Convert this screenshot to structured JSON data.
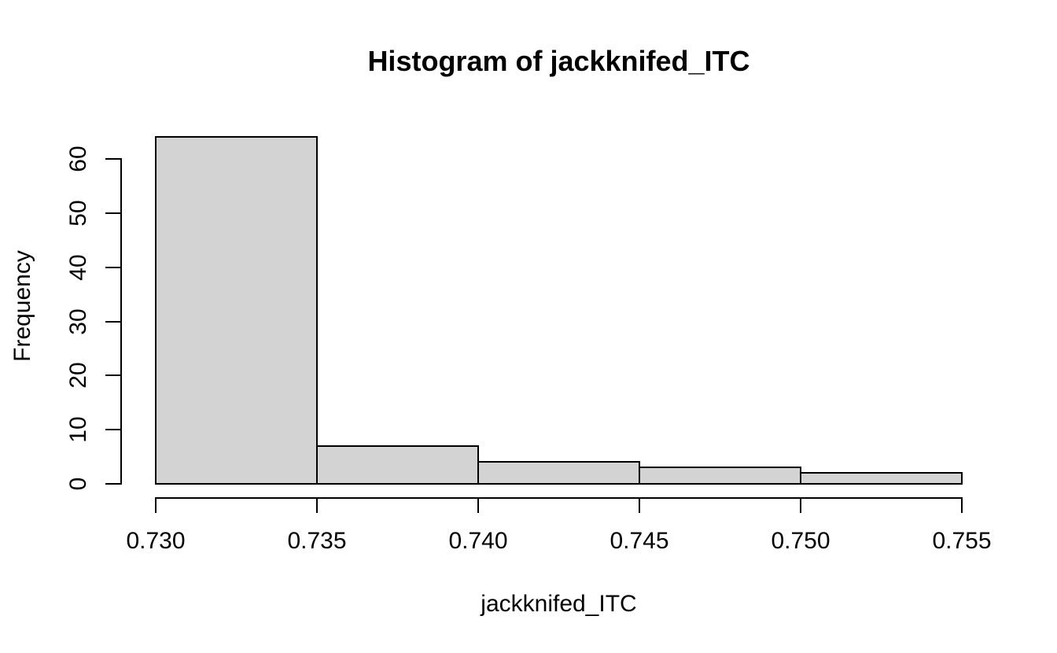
{
  "figure": {
    "title": "Histogram of jackknifed_ITC",
    "background_color": "#ffffff",
    "bar_fill_color": "#d3d3d3",
    "bar_border_color": "#000000",
    "axis_color": "#000000",
    "text_color": "#000000"
  },
  "chart_data": {
    "type": "bar",
    "subtype": "histogram",
    "title": "Histogram of jackknifed_ITC",
    "xlabel": "jackknifed_ITC",
    "ylabel": "Frequency",
    "bin_edges": [
      0.73,
      0.735,
      0.74,
      0.745,
      0.75,
      0.755
    ],
    "counts": [
      64,
      7,
      4,
      3,
      2
    ],
    "x_tick_labels": [
      "0.730",
      "0.735",
      "0.740",
      "0.745",
      "0.750",
      "0.755"
    ],
    "y_tick_values": [
      0,
      10,
      20,
      30,
      40,
      50,
      60
    ],
    "y_tick_labels": [
      "0",
      "10",
      "20",
      "30",
      "40",
      "50",
      "60"
    ],
    "xlim": [
      0.73,
      0.755
    ],
    "ylim": [
      0,
      60
    ],
    "grid": false,
    "legend": "none"
  }
}
